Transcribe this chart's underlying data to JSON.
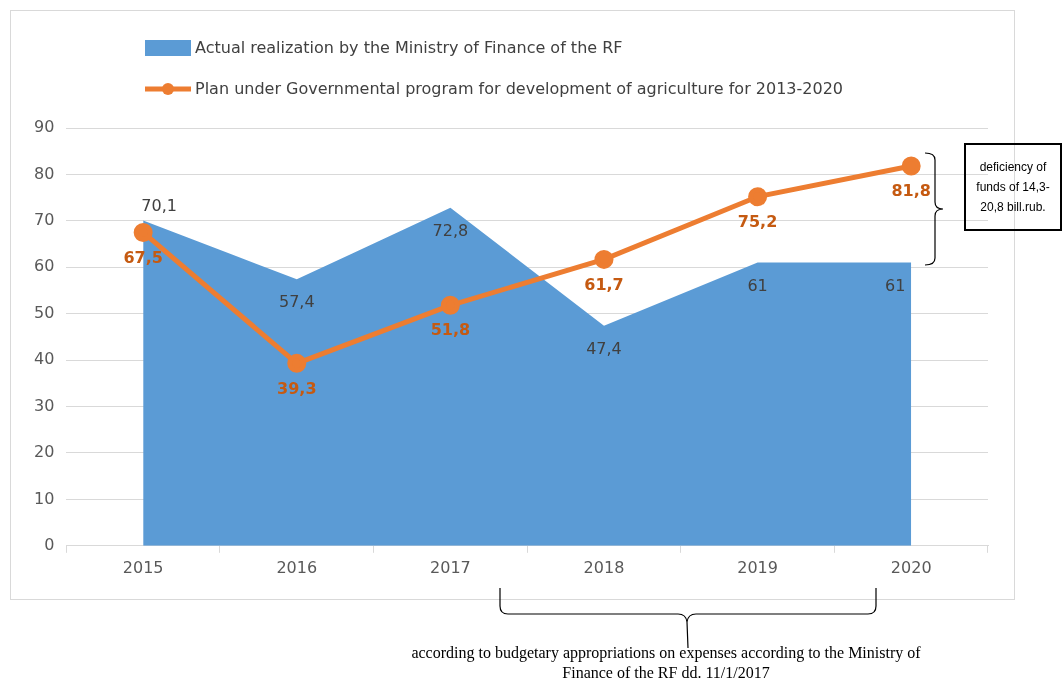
{
  "chart_data": {
    "type": "area",
    "categories": [
      "2015",
      "2016",
      "2017",
      "2018",
      "2019",
      "2020"
    ],
    "series": [
      {
        "name": "Actual realization by the Ministry of Finance of the RF",
        "color": "#5b9bd5",
        "values": [
          70.1,
          57.4,
          72.8,
          47.4,
          61,
          61
        ],
        "value_labels": [
          "70,1",
          "57,4",
          "72,8",
          "47,4",
          "61",
          "61"
        ]
      },
      {
        "name": "Plan under Governmental program for development of agriculture for 2013-2020",
        "type": "line",
        "color": "#ed7d31",
        "marker": "circle",
        "values": [
          67.5,
          39.3,
          51.8,
          61.7,
          75.2,
          81.8
        ],
        "value_labels": [
          "67,5",
          "39,3",
          "51,8",
          "61,7",
          "75,2",
          "81,8"
        ]
      }
    ],
    "ylim": [
      0,
      90
    ],
    "yticks": [
      0,
      10,
      20,
      30,
      40,
      50,
      60,
      70,
      80,
      90
    ],
    "grid": "y",
    "legend": "top",
    "annotations": [
      "deficiency of funds of 14,3-20,8 bill.rub.",
      "according to budgetary appropriations on expenses according to the Ministry of Finance of the RF dd. 11/1/2017"
    ]
  }
}
